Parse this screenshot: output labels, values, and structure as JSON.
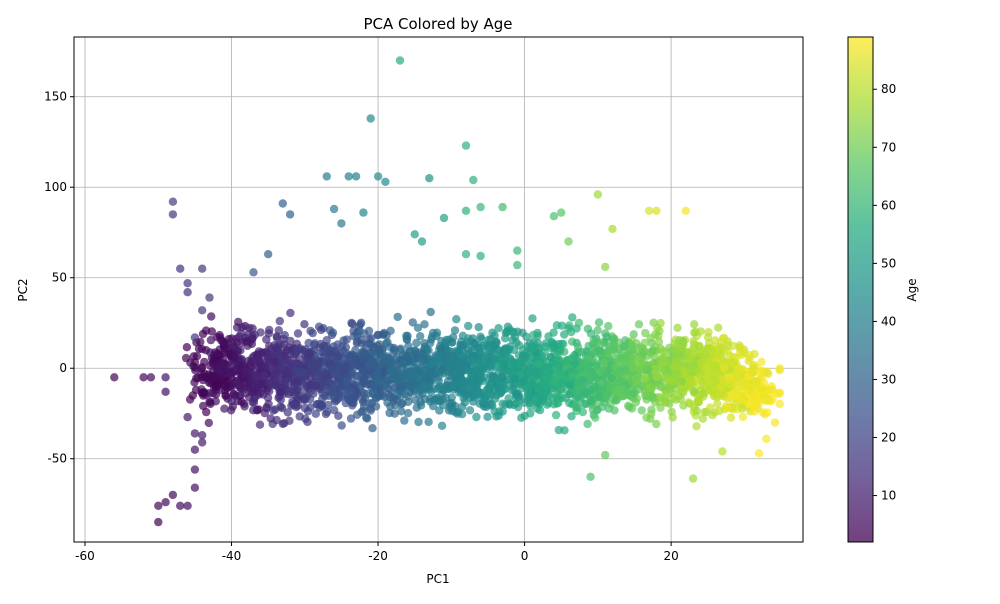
{
  "chart_data": {
    "type": "scatter",
    "title": "PCA Colored by Age",
    "xlabel": "PC1",
    "ylabel": "PC2",
    "xlim": [
      -61.5,
      38
    ],
    "ylim": [
      -96,
      183
    ],
    "xticks": [
      -60,
      -40,
      -20,
      0,
      20
    ],
    "yticks": [
      -50,
      0,
      50,
      100,
      150
    ],
    "grid": true,
    "colormap": "viridis",
    "colorbar": {
      "label": "Age",
      "range": [
        2,
        89
      ],
      "ticks": [
        10,
        20,
        30,
        40,
        50,
        60,
        70,
        80
      ]
    },
    "marker_alpha": 0.7,
    "cloud": {
      "description_pc1_range": [
        -44,
        33
      ],
      "pc2_center": -2,
      "pc2_spread": 20,
      "age_range": [
        2,
        89
      ],
      "count": 3200
    },
    "points": [
      {
        "x": -56,
        "y": -5,
        "age": 3
      },
      {
        "x": -52,
        "y": -5,
        "age": 4
      },
      {
        "x": -51,
        "y": -5,
        "age": 4
      },
      {
        "x": -49,
        "y": -5,
        "age": 6
      },
      {
        "x": -49,
        "y": -13,
        "age": 6
      },
      {
        "x": -50,
        "y": -76,
        "age": 3
      },
      {
        "x": -49,
        "y": -74,
        "age": 4
      },
      {
        "x": -48,
        "y": -70,
        "age": 4
      },
      {
        "x": -47,
        "y": -76,
        "age": 5
      },
      {
        "x": -46,
        "y": -76,
        "age": 5
      },
      {
        "x": -50,
        "y": -85,
        "age": 2
      },
      {
        "x": -45,
        "y": -66,
        "age": 6
      },
      {
        "x": -45,
        "y": -56,
        "age": 7
      },
      {
        "x": -45,
        "y": -45,
        "age": 7
      },
      {
        "x": -44,
        "y": -41,
        "age": 8
      },
      {
        "x": -45,
        "y": -36,
        "age": 8
      },
      {
        "x": -44,
        "y": -37,
        "age": 9
      },
      {
        "x": -46,
        "y": -27,
        "age": 8
      },
      {
        "x": -48,
        "y": 92,
        "age": 18
      },
      {
        "x": -48,
        "y": 85,
        "age": 16
      },
      {
        "x": -47,
        "y": 55,
        "age": 14
      },
      {
        "x": -46,
        "y": 47,
        "age": 14
      },
      {
        "x": -46,
        "y": 42,
        "age": 14
      },
      {
        "x": -44,
        "y": 55,
        "age": 16
      },
      {
        "x": -43,
        "y": 39,
        "age": 16
      },
      {
        "x": -44,
        "y": 32,
        "age": 16
      },
      {
        "x": -45,
        "y": 17,
        "age": 16
      },
      {
        "x": -33,
        "y": 91,
        "age": 30
      },
      {
        "x": -32,
        "y": 85,
        "age": 30
      },
      {
        "x": -37,
        "y": 53,
        "age": 26
      },
      {
        "x": -35,
        "y": 63,
        "age": 28
      },
      {
        "x": -27,
        "y": 106,
        "age": 40
      },
      {
        "x": -24,
        "y": 106,
        "age": 40
      },
      {
        "x": -23,
        "y": 106,
        "age": 40
      },
      {
        "x": -26,
        "y": 88,
        "age": 38
      },
      {
        "x": -25,
        "y": 80,
        "age": 38
      },
      {
        "x": -22,
        "y": 86,
        "age": 42
      },
      {
        "x": -21,
        "y": 138,
        "age": 44
      },
      {
        "x": -20,
        "y": 106,
        "age": 44
      },
      {
        "x": -19,
        "y": 103,
        "age": 44
      },
      {
        "x": -17,
        "y": 170,
        "age": 56
      },
      {
        "x": -13,
        "y": 105,
        "age": 46
      },
      {
        "x": -15,
        "y": 74,
        "age": 50
      },
      {
        "x": -14,
        "y": 70,
        "age": 50
      },
      {
        "x": -11,
        "y": 83,
        "age": 52
      },
      {
        "x": -8,
        "y": 123,
        "age": 58
      },
      {
        "x": -7,
        "y": 104,
        "age": 58
      },
      {
        "x": -8,
        "y": 87,
        "age": 58
      },
      {
        "x": -6,
        "y": 89,
        "age": 60
      },
      {
        "x": -3,
        "y": 89,
        "age": 62
      },
      {
        "x": -8,
        "y": 63,
        "age": 58
      },
      {
        "x": -6,
        "y": 62,
        "age": 58
      },
      {
        "x": -1,
        "y": 65,
        "age": 60
      },
      {
        "x": -1,
        "y": 57,
        "age": 60
      },
      {
        "x": 4,
        "y": 84,
        "age": 64
      },
      {
        "x": 5,
        "y": 86,
        "age": 66
      },
      {
        "x": 6,
        "y": 70,
        "age": 70
      },
      {
        "x": 10,
        "y": 96,
        "age": 76
      },
      {
        "x": 12,
        "y": 77,
        "age": 78
      },
      {
        "x": 11,
        "y": 56,
        "age": 74
      },
      {
        "x": 17,
        "y": 87,
        "age": 84
      },
      {
        "x": 18,
        "y": 87,
        "age": 84
      },
      {
        "x": 22,
        "y": 87,
        "age": 87
      },
      {
        "x": 9,
        "y": -60,
        "age": 64
      },
      {
        "x": 23,
        "y": -61,
        "age": 76
      },
      {
        "x": 27,
        "y": -46,
        "age": 80
      },
      {
        "x": 32,
        "y": -47,
        "age": 89
      },
      {
        "x": 33,
        "y": -39,
        "age": 89
      },
      {
        "x": 11,
        "y": -48,
        "age": 68
      }
    ]
  }
}
